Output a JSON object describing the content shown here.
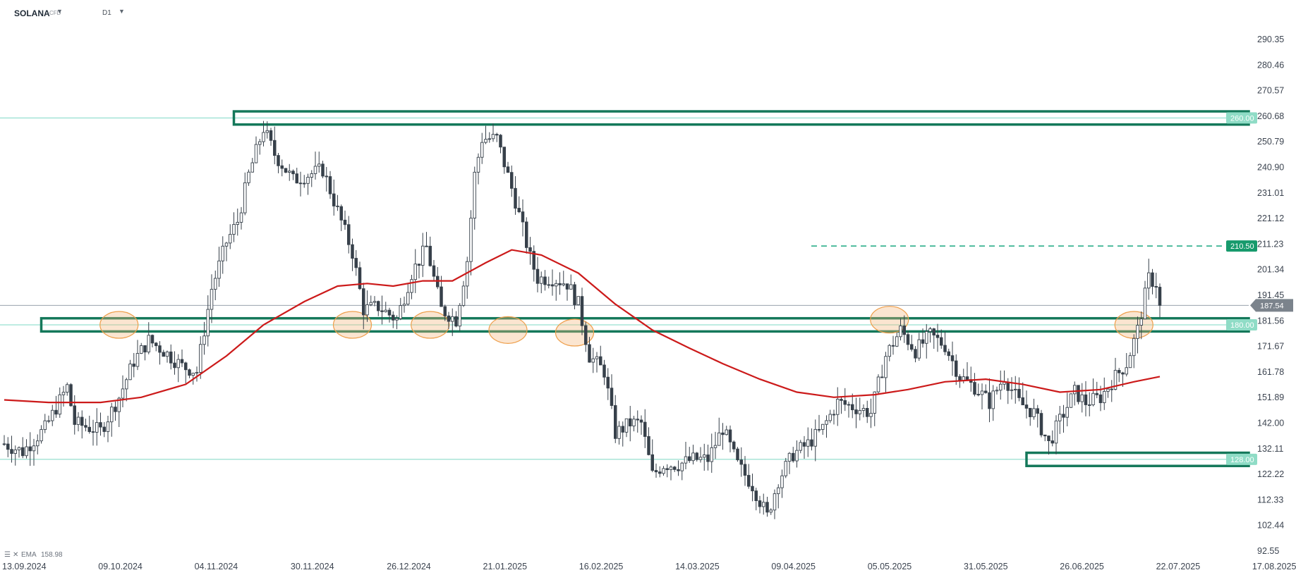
{
  "header": {
    "symbol": "SOLANA",
    "instrument_type": "CFD",
    "timeframe": "D1"
  },
  "legend": {
    "indicator": "EMA",
    "value": "158.98"
  },
  "chart_data": {
    "type": "candlestick",
    "y_axis": {
      "ticks": [
        92.55,
        102.44,
        112.33,
        122.22,
        132.11,
        142.0,
        151.89,
        161.78,
        171.67,
        181.56,
        191.45,
        201.34,
        211.23,
        221.12,
        231.01,
        240.9,
        250.79,
        260.68,
        270.57,
        280.46,
        290.35
      ],
      "range": [
        92.55,
        290.35
      ]
    },
    "x_axis": {
      "ticks": [
        "13.09.2024",
        "09.10.2024",
        "04.11.2024",
        "30.11.2024",
        "26.12.2024",
        "21.01.2025",
        "16.02.2025",
        "14.03.2025",
        "09.04.2025",
        "05.05.2025",
        "31.05.2025",
        "26.06.2025",
        "22.07.2025",
        "17.08.2025"
      ]
    },
    "current_price": 187.54,
    "levels": [
      {
        "value": 260.0,
        "label": "260.00",
        "style": "solid",
        "color": "#7ed8c4"
      },
      {
        "value": 210.5,
        "label": "210.50",
        "style": "dashed",
        "color": "#1aa880"
      },
      {
        "value": 180.0,
        "label": "180.00",
        "style": "solid",
        "color": "#7ed8c4"
      },
      {
        "value": 128.0,
        "label": "128.00",
        "style": "solid",
        "color": "#7ed8c4"
      }
    ],
    "zones": [
      {
        "from_date": "2024-11-14",
        "low": 258,
        "high": 262
      },
      {
        "from_date": "2024-09-23",
        "low": 178,
        "high": 182
      },
      {
        "from_date": "2025-06-16",
        "low": 126,
        "high": 130
      }
    ],
    "highlights": [
      {
        "date": "2024-10-14",
        "price": 180
      },
      {
        "date": "2024-12-16",
        "price": 180
      },
      {
        "date": "2025-01-06",
        "price": 180
      },
      {
        "date": "2025-01-27",
        "price": 178
      },
      {
        "date": "2025-02-14",
        "price": 177
      },
      {
        "date": "2025-05-10",
        "price": 182
      },
      {
        "date": "2025-07-15",
        "price": 180
      }
    ],
    "price_path": [
      [
        "2024-09-13",
        134
      ],
      [
        "2024-09-18",
        131
      ],
      [
        "2024-09-24",
        140
      ],
      [
        "2024-09-30",
        156
      ],
      [
        "2024-10-02",
        142
      ],
      [
        "2024-10-09",
        139
      ],
      [
        "2024-10-14",
        152
      ],
      [
        "2024-10-18",
        166
      ],
      [
        "2024-10-22",
        174
      ],
      [
        "2024-10-26",
        170
      ],
      [
        "2024-10-31",
        164
      ],
      [
        "2024-11-04",
        162
      ],
      [
        "2024-11-08",
        194
      ],
      [
        "2024-11-12",
        212
      ],
      [
        "2024-11-15",
        220
      ],
      [
        "2024-11-18",
        238
      ],
      [
        "2024-11-22",
        256
      ],
      [
        "2024-11-25",
        246
      ],
      [
        "2024-11-30",
        236
      ],
      [
        "2024-12-04",
        238
      ],
      [
        "2024-12-08",
        240
      ],
      [
        "2024-12-12",
        224
      ],
      [
        "2024-12-16",
        208
      ],
      [
        "2024-12-19",
        186
      ],
      [
        "2024-12-23",
        187
      ],
      [
        "2024-12-28",
        182
      ],
      [
        "2025-01-01",
        200
      ],
      [
        "2025-01-05",
        210
      ],
      [
        "2025-01-09",
        186
      ],
      [
        "2025-01-13",
        182
      ],
      [
        "2025-01-16",
        205
      ],
      [
        "2025-01-18",
        238
      ],
      [
        "2025-01-20",
        252
      ],
      [
        "2025-01-24",
        252
      ],
      [
        "2025-01-29",
        228
      ],
      [
        "2025-02-02",
        206
      ],
      [
        "2025-02-04",
        198
      ],
      [
        "2025-02-08",
        198
      ],
      [
        "2025-02-12",
        196
      ],
      [
        "2025-02-15",
        188
      ],
      [
        "2025-02-18",
        168
      ],
      [
        "2025-02-22",
        162
      ],
      [
        "2025-02-25",
        138
      ],
      [
        "2025-03-01",
        142
      ],
      [
        "2025-03-04",
        142
      ],
      [
        "2025-03-07",
        122
      ],
      [
        "2025-03-10",
        126
      ],
      [
        "2025-03-14",
        126
      ],
      [
        "2025-03-18",
        128
      ],
      [
        "2025-03-22",
        128
      ],
      [
        "2025-03-26",
        140
      ],
      [
        "2025-03-30",
        126
      ],
      [
        "2025-04-03",
        118
      ],
      [
        "2025-04-07",
        106
      ],
      [
        "2025-04-10",
        120
      ],
      [
        "2025-04-14",
        130
      ],
      [
        "2025-04-18",
        134
      ],
      [
        "2025-04-22",
        140
      ],
      [
        "2025-04-26",
        150
      ],
      [
        "2025-05-01",
        148
      ],
      [
        "2025-05-05",
        146
      ],
      [
        "2025-05-09",
        168
      ],
      [
        "2025-05-13",
        178
      ],
      [
        "2025-05-17",
        170
      ],
      [
        "2025-05-21",
        176
      ],
      [
        "2025-05-25",
        172
      ],
      [
        "2025-05-29",
        160
      ],
      [
        "2025-06-02",
        156
      ],
      [
        "2025-06-06",
        150
      ],
      [
        "2025-06-10",
        160
      ],
      [
        "2025-06-14",
        150
      ],
      [
        "2025-06-18",
        146
      ],
      [
        "2025-06-22",
        134
      ],
      [
        "2025-06-25",
        143
      ],
      [
        "2025-06-29",
        154
      ],
      [
        "2025-07-02",
        150
      ],
      [
        "2025-07-06",
        152
      ],
      [
        "2025-07-10",
        160
      ],
      [
        "2025-07-13",
        165
      ],
      [
        "2025-07-16",
        178
      ],
      [
        "2025-07-19",
        198
      ],
      [
        "2025-07-21",
        196
      ],
      [
        "2025-07-22",
        187.54
      ]
    ],
    "ema_path": [
      [
        "2024-09-13",
        151
      ],
      [
        "2024-09-25",
        150
      ],
      [
        "2024-10-09",
        150
      ],
      [
        "2024-10-20",
        152
      ],
      [
        "2024-11-01",
        157
      ],
      [
        "2024-11-12",
        168
      ],
      [
        "2024-11-22",
        180
      ],
      [
        "2024-12-03",
        189
      ],
      [
        "2024-12-12",
        195
      ],
      [
        "2024-12-20",
        196
      ],
      [
        "2024-12-27",
        195
      ],
      [
        "2025-01-04",
        197
      ],
      [
        "2025-01-12",
        197
      ],
      [
        "2025-01-21",
        204
      ],
      [
        "2025-01-28",
        209
      ],
      [
        "2025-02-05",
        207
      ],
      [
        "2025-02-15",
        200
      ],
      [
        "2025-02-25",
        188
      ],
      [
        "2025-03-07",
        178
      ],
      [
        "2025-03-17",
        171
      ],
      [
        "2025-03-26",
        165
      ],
      [
        "2025-04-05",
        159
      ],
      [
        "2025-04-15",
        154
      ],
      [
        "2025-04-25",
        152
      ],
      [
        "2025-05-06",
        153
      ],
      [
        "2025-05-15",
        155
      ],
      [
        "2025-05-25",
        158
      ],
      [
        "2025-06-05",
        159
      ],
      [
        "2025-06-15",
        157
      ],
      [
        "2025-06-25",
        154
      ],
      [
        "2025-07-06",
        155
      ],
      [
        "2025-07-15",
        158
      ],
      [
        "2025-07-22",
        160
      ]
    ]
  }
}
